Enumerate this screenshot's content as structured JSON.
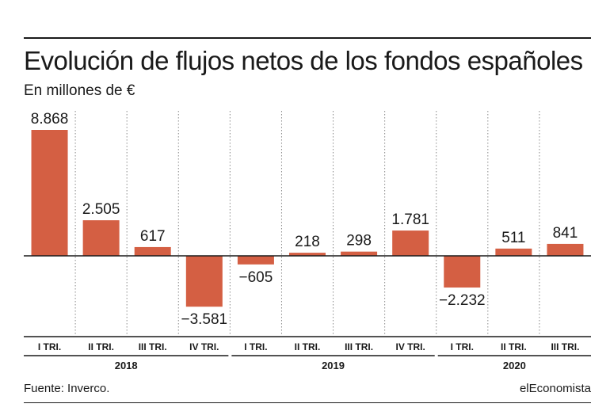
{
  "chart_data": {
    "type": "bar",
    "title": "Evolución de flujos netos de los fondos españoles",
    "subtitle": "En millones de €",
    "categories": [
      "I TRI.",
      "II TRI.",
      "III TRI.",
      "IV TRI.",
      "I TRI.",
      "II TRI.",
      "III TRI.",
      "IV TRI.",
      "I TRI.",
      "II TRI.",
      "III TRI."
    ],
    "values": [
      8868,
      2505,
      617,
      -3581,
      -605,
      218,
      298,
      1781,
      -2232,
      511,
      841
    ],
    "value_labels": [
      "8.868",
      "2.505",
      "617",
      "−3.581",
      "−605",
      "218",
      "298",
      "1.781",
      "−2.232",
      "511",
      "841"
    ],
    "years": [
      {
        "label": "2018",
        "quarters": 4
      },
      {
        "label": "2019",
        "quarters": 4
      },
      {
        "label": "2020",
        "quarters": 3
      }
    ],
    "ylim": [
      -3581,
      8868
    ],
    "grid": "vertical dotted separators",
    "bar_color": "#d45f43",
    "xlabel": "",
    "ylabel": ""
  },
  "footer": {
    "source": "Fuente: Inverco.",
    "brand": "elEconomista"
  }
}
